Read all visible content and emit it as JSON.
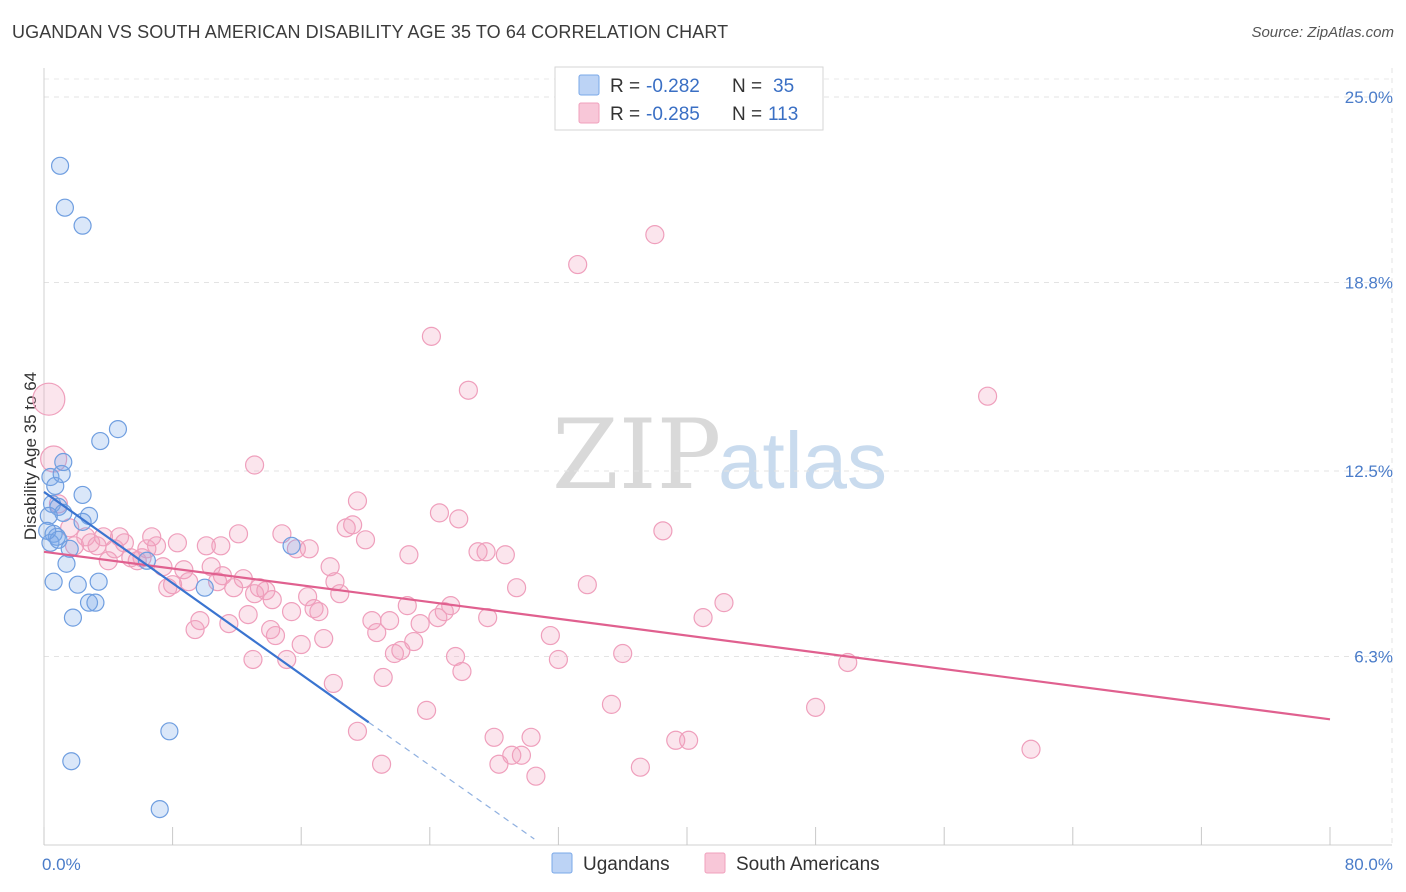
{
  "header": {
    "title": "UGANDAN VS SOUTH AMERICAN DISABILITY AGE 35 TO 64 CORRELATION CHART",
    "source": "Source: ZipAtlas.com"
  },
  "watermark": {
    "zip": "ZIP",
    "atlas": "atlas"
  },
  "legend": {
    "rows": [
      {
        "r_label": "R = ",
        "r_value": "-0.282",
        "n_label": "N = ",
        "n_value": "35"
      },
      {
        "r_label": "R = ",
        "r_value": "-0.285",
        "n_label": "N = ",
        "n_value": "113"
      }
    ]
  },
  "bottom_legend": {
    "items": [
      "Ugandans",
      "South Americans"
    ]
  },
  "chart_data": {
    "type": "scatter",
    "title": "UGANDAN VS SOUTH AMERICAN DISABILITY AGE 35 TO 64 CORRELATION CHART",
    "xlabel": "",
    "ylabel": "Disability Age 35 to 64",
    "xlim": [
      0,
      80
    ],
    "ylim": [
      0,
      25.6
    ],
    "x_tick_labels": [
      "0.0%",
      "80.0%"
    ],
    "y_ticks": [
      6.3,
      12.5,
      18.8,
      25.0
    ],
    "y_tick_labels": [
      "6.3%",
      "12.5%",
      "18.8%",
      "25.0%"
    ],
    "colors": {
      "ugandans": "#7aa8e8",
      "south_americans": "#f0a0bd",
      "ugandans_line": "#3a74d0",
      "south_americans_line": "#e0608f"
    },
    "series": [
      {
        "name": "Ugandans",
        "r": -0.282,
        "n": 35,
        "points": [
          [
            1.0,
            22.7
          ],
          [
            1.3,
            21.3
          ],
          [
            2.4,
            20.7
          ],
          [
            0.4,
            12.3
          ],
          [
            0.7,
            12.0
          ],
          [
            1.1,
            12.4
          ],
          [
            1.2,
            12.8
          ],
          [
            0.5,
            11.4
          ],
          [
            0.9,
            11.3
          ],
          [
            1.2,
            11.1
          ],
          [
            2.4,
            11.7
          ],
          [
            2.8,
            11.0
          ],
          [
            0.3,
            11.0
          ],
          [
            0.6,
            10.4
          ],
          [
            0.8,
            10.3
          ],
          [
            0.4,
            10.1
          ],
          [
            0.9,
            10.2
          ],
          [
            2.4,
            10.8
          ],
          [
            3.5,
            13.5
          ],
          [
            4.6,
            13.9
          ],
          [
            1.4,
            9.4
          ],
          [
            0.6,
            8.8
          ],
          [
            2.1,
            8.7
          ],
          [
            3.4,
            8.8
          ],
          [
            2.8,
            8.1
          ],
          [
            3.2,
            8.1
          ],
          [
            1.8,
            7.6
          ],
          [
            6.4,
            9.5
          ],
          [
            10.0,
            8.6
          ],
          [
            15.4,
            10.0
          ],
          [
            7.8,
            3.8
          ],
          [
            1.7,
            2.8
          ],
          [
            7.2,
            1.2
          ],
          [
            0.2,
            10.5
          ],
          [
            1.6,
            9.9
          ]
        ]
      },
      {
        "name": "South Americans",
        "r": -0.285,
        "n": 113,
        "points": [
          [
            0.3,
            14.9
          ],
          [
            0.6,
            12.9
          ],
          [
            0.9,
            11.4
          ],
          [
            1.6,
            10.6
          ],
          [
            1.9,
            10.0
          ],
          [
            2.6,
            10.3
          ],
          [
            2.9,
            10.1
          ],
          [
            3.3,
            10.0
          ],
          [
            3.7,
            10.3
          ],
          [
            4.0,
            9.5
          ],
          [
            4.4,
            9.9
          ],
          [
            4.7,
            10.3
          ],
          [
            5.0,
            10.1
          ],
          [
            5.4,
            9.6
          ],
          [
            5.8,
            9.5
          ],
          [
            6.1,
            9.6
          ],
          [
            6.4,
            9.9
          ],
          [
            6.7,
            10.3
          ],
          [
            7.0,
            10.0
          ],
          [
            7.4,
            9.3
          ],
          [
            7.7,
            8.6
          ],
          [
            8.0,
            8.7
          ],
          [
            8.3,
            10.1
          ],
          [
            8.7,
            9.2
          ],
          [
            9.0,
            8.8
          ],
          [
            9.4,
            7.2
          ],
          [
            9.7,
            7.5
          ],
          [
            10.1,
            10.0
          ],
          [
            10.4,
            9.3
          ],
          [
            10.8,
            8.8
          ],
          [
            11.1,
            9.0
          ],
          [
            11.5,
            7.4
          ],
          [
            11.8,
            8.6
          ],
          [
            12.1,
            10.4
          ],
          [
            12.4,
            8.9
          ],
          [
            12.7,
            7.7
          ],
          [
            13.1,
            8.4
          ],
          [
            13.4,
            8.6
          ],
          [
            13.8,
            8.5
          ],
          [
            14.1,
            7.2
          ],
          [
            14.4,
            7.0
          ],
          [
            14.8,
            10.4
          ],
          [
            15.1,
            6.2
          ],
          [
            15.4,
            7.8
          ],
          [
            15.7,
            9.9
          ],
          [
            16.0,
            6.7
          ],
          [
            16.4,
            8.3
          ],
          [
            16.8,
            7.9
          ],
          [
            17.1,
            7.8
          ],
          [
            17.4,
            6.9
          ],
          [
            17.8,
            9.3
          ],
          [
            18.1,
            8.8
          ],
          [
            18.4,
            8.4
          ],
          [
            18.8,
            10.6
          ],
          [
            19.2,
            10.7
          ],
          [
            19.5,
            11.5
          ],
          [
            20.0,
            10.2
          ],
          [
            20.4,
            7.5
          ],
          [
            20.7,
            7.1
          ],
          [
            21.1,
            5.6
          ],
          [
            21.5,
            7.5
          ],
          [
            21.8,
            6.4
          ],
          [
            22.2,
            6.5
          ],
          [
            22.6,
            8.0
          ],
          [
            23.0,
            6.8
          ],
          [
            23.4,
            7.4
          ],
          [
            23.8,
            4.5
          ],
          [
            24.1,
            17.0
          ],
          [
            24.5,
            7.6
          ],
          [
            24.9,
            7.8
          ],
          [
            25.3,
            8.0
          ],
          [
            25.6,
            6.3
          ],
          [
            26.0,
            5.8
          ],
          [
            26.4,
            15.2
          ],
          [
            27.0,
            9.8
          ],
          [
            27.5,
            9.8
          ],
          [
            28.0,
            3.6
          ],
          [
            28.3,
            2.7
          ],
          [
            28.7,
            9.7
          ],
          [
            29.1,
            3.0
          ],
          [
            29.7,
            3.0
          ],
          [
            30.6,
            2.3
          ],
          [
            31.5,
            7.0
          ],
          [
            32.0,
            6.2
          ],
          [
            33.2,
            19.4
          ],
          [
            33.8,
            8.7
          ],
          [
            35.3,
            4.7
          ],
          [
            36.0,
            6.4
          ],
          [
            37.1,
            2.6
          ],
          [
            38.0,
            20.4
          ],
          [
            38.5,
            10.5
          ],
          [
            39.3,
            3.5
          ],
          [
            40.1,
            3.5
          ],
          [
            41.0,
            7.6
          ],
          [
            42.3,
            8.1
          ],
          [
            48.0,
            4.6
          ],
          [
            50.0,
            6.1
          ],
          [
            58.7,
            15.0
          ],
          [
            61.4,
            3.2
          ],
          [
            13.1,
            12.7
          ],
          [
            19.5,
            3.8
          ],
          [
            21.0,
            2.7
          ],
          [
            22.7,
            9.7
          ],
          [
            24.6,
            11.1
          ],
          [
            25.8,
            10.9
          ],
          [
            27.6,
            7.6
          ],
          [
            29.4,
            8.6
          ],
          [
            30.3,
            3.6
          ],
          [
            16.5,
            9.9
          ],
          [
            18.0,
            5.4
          ],
          [
            11.0,
            10.0
          ],
          [
            13.0,
            6.2
          ],
          [
            14.2,
            8.2
          ]
        ]
      }
    ],
    "trendlines": [
      {
        "series": "Ugandans",
        "solid_from": [
          0,
          11.8
        ],
        "solid_to": [
          20.2,
          4.1
        ],
        "dashed_to": [
          30.5,
          0.2
        ]
      },
      {
        "series": "South Americans",
        "from": [
          0,
          9.8
        ],
        "to": [
          80,
          4.2
        ]
      }
    ]
  }
}
